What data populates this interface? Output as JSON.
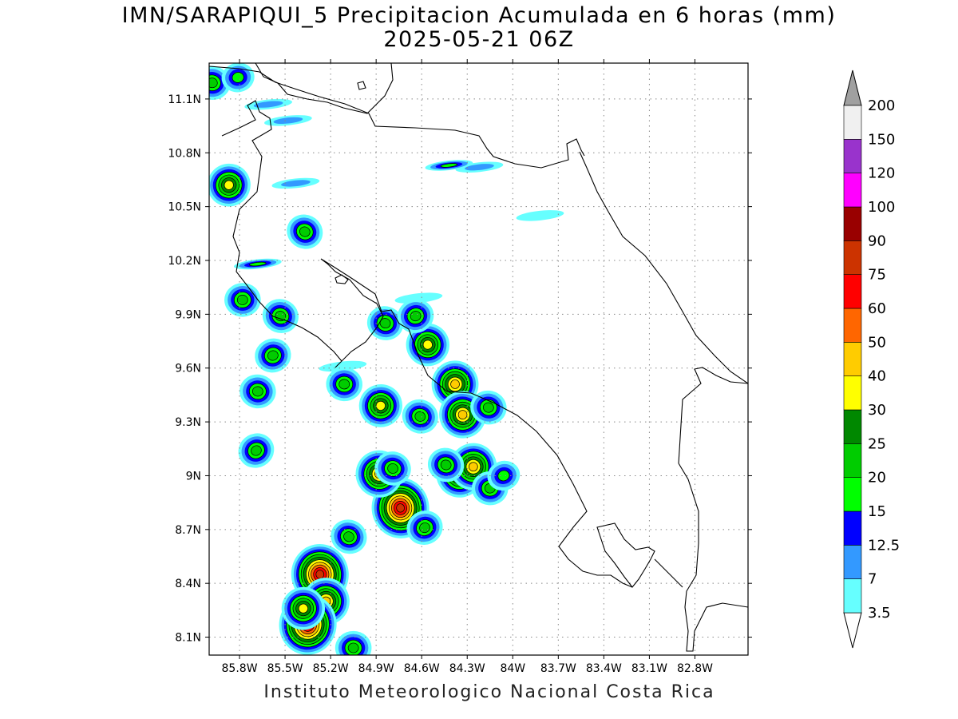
{
  "header": {
    "title_line_1": "IMN/SARAPIQUI_5 Precipitacion Acumulada en 6 horas (mm)",
    "title_line_2": "2025-05-21 06Z"
  },
  "footer": {
    "credit": "Instituto Meteorologico Nacional Costa Rica"
  },
  "map": {
    "lon_range": [
      -86.0,
      -82.45
    ],
    "lat_range": [
      8.0,
      11.3
    ],
    "lon_ticks": [
      {
        "value": -85.8,
        "label": "85.8W"
      },
      {
        "value": -85.5,
        "label": "85.5W"
      },
      {
        "value": -85.2,
        "label": "85.2W"
      },
      {
        "value": -84.9,
        "label": "84.9W"
      },
      {
        "value": -84.6,
        "label": "84.6W"
      },
      {
        "value": -84.3,
        "label": "84.3W"
      },
      {
        "value": -84.0,
        "label": "84W"
      },
      {
        "value": -83.7,
        "label": "83.7W"
      },
      {
        "value": -83.4,
        "label": "83.4W"
      },
      {
        "value": -83.1,
        "label": "83.1W"
      },
      {
        "value": -82.8,
        "label": "82.8W"
      }
    ],
    "lat_ticks": [
      {
        "value": 11.1,
        "label": "11.1N"
      },
      {
        "value": 10.8,
        "label": "10.8N"
      },
      {
        "value": 10.5,
        "label": "10.5N"
      },
      {
        "value": 10.2,
        "label": "10.2N"
      },
      {
        "value": 9.9,
        "label": "9.9N"
      },
      {
        "value": 9.6,
        "label": "9.6N"
      },
      {
        "value": 9.3,
        "label": "9.3N"
      },
      {
        "value": 9.0,
        "label": "9N"
      },
      {
        "value": 8.7,
        "label": "8.7N"
      },
      {
        "value": 8.4,
        "label": "8.4N"
      },
      {
        "value": 8.1,
        "label": "8.1N"
      }
    ],
    "grid": true
  },
  "legend": {
    "min_arrow_color": "#ffffff",
    "max_arrow_color": "#a0a0a0",
    "bins": [
      {
        "color": "#66ffff"
      },
      {
        "color": "#3399ff"
      },
      {
        "color": "#0000ff"
      },
      {
        "color": "#00ff00"
      },
      {
        "color": "#00cc00"
      },
      {
        "color": "#008800"
      },
      {
        "color": "#ffff00"
      },
      {
        "color": "#ffcc00"
      },
      {
        "color": "#ff6600"
      },
      {
        "color": "#ff0000"
      },
      {
        "color": "#cc3300"
      },
      {
        "color": "#990000"
      },
      {
        "color": "#ff00ff"
      },
      {
        "color": "#9933cc"
      },
      {
        "color": "#f0f0f0"
      }
    ],
    "labels": [
      "3.5",
      "7",
      "12.5",
      "15",
      "20",
      "25",
      "30",
      "40",
      "50",
      "60",
      "75",
      "90",
      "100",
      "120",
      "150",
      "200"
    ]
  },
  "precip_cells": [
    {
      "lon": -85.69,
      "lat": 9.14,
      "peak": "20"
    },
    {
      "lon": -85.68,
      "lat": 9.47,
      "peak": "20"
    },
    {
      "lon": -85.58,
      "lat": 9.67,
      "peak": "20"
    },
    {
      "lon": -85.53,
      "lat": 9.89,
      "peak": "20"
    },
    {
      "lon": -85.78,
      "lat": 9.98,
      "peak": "20"
    },
    {
      "lon": -85.87,
      "lat": 10.62,
      "peak": "30"
    },
    {
      "lon": -85.98,
      "lat": 11.19,
      "peak": "20"
    },
    {
      "lon": -85.81,
      "lat": 11.22,
      "peak": "15"
    },
    {
      "lon": -85.37,
      "lat": 10.36,
      "peak": "20"
    },
    {
      "lon": -85.11,
      "lat": 9.51,
      "peak": "20"
    },
    {
      "lon": -84.87,
      "lat": 9.39,
      "peak": "30"
    },
    {
      "lon": -84.84,
      "lat": 9.85,
      "peak": "20"
    },
    {
      "lon": -84.74,
      "lat": 8.82,
      "peak": "75"
    },
    {
      "lon": -84.88,
      "lat": 9.01,
      "peak": "40"
    },
    {
      "lon": -84.56,
      "lat": 9.73,
      "peak": "30"
    },
    {
      "lon": -84.64,
      "lat": 9.89,
      "peak": "20"
    },
    {
      "lon": -84.61,
      "lat": 9.33,
      "peak": "20"
    },
    {
      "lon": -84.38,
      "lat": 9.51,
      "peak": "40"
    },
    {
      "lon": -84.33,
      "lat": 9.34,
      "peak": "40"
    },
    {
      "lon": -84.16,
      "lat": 9.38,
      "peak": "20"
    },
    {
      "lon": -84.35,
      "lat": 9.01,
      "peak": "40"
    },
    {
      "lon": -84.26,
      "lat": 9.05,
      "peak": "40"
    },
    {
      "lon": -84.15,
      "lat": 8.93,
      "peak": "20"
    },
    {
      "lon": -84.06,
      "lat": 9.0,
      "peak": "15"
    },
    {
      "lon": -84.44,
      "lat": 9.06,
      "peak": "20"
    },
    {
      "lon": -85.27,
      "lat": 8.45,
      "peak": "75"
    },
    {
      "lon": -85.23,
      "lat": 8.3,
      "peak": "40"
    },
    {
      "lon": -85.35,
      "lat": 8.17,
      "peak": "75"
    },
    {
      "lon": -85.38,
      "lat": 8.26,
      "peak": "30"
    },
    {
      "lon": -85.08,
      "lat": 8.66,
      "peak": "20"
    },
    {
      "lon": -85.05,
      "lat": 8.04,
      "peak": "20"
    },
    {
      "lon": -84.58,
      "lat": 8.71,
      "peak": "20"
    },
    {
      "lon": -84.79,
      "lat": 9.04,
      "peak": "20"
    }
  ],
  "precip_bands": [
    {
      "lon": -84.22,
      "lat": 10.72,
      "peak": "7"
    },
    {
      "lon": -84.42,
      "lat": 10.73,
      "peak": "15"
    },
    {
      "lon": -85.48,
      "lat": 10.98,
      "peak": "7"
    },
    {
      "lon": -85.61,
      "lat": 11.07,
      "peak": "7"
    },
    {
      "lon": -85.43,
      "lat": 10.63,
      "peak": "7"
    },
    {
      "lon": -85.68,
      "lat": 10.18,
      "peak": "15"
    },
    {
      "lon": -84.62,
      "lat": 9.99,
      "peak": "3.5"
    },
    {
      "lon": -85.12,
      "lat": 9.61,
      "peak": "3.5"
    },
    {
      "lon": -83.82,
      "lat": 10.45,
      "peak": "3.5"
    }
  ]
}
